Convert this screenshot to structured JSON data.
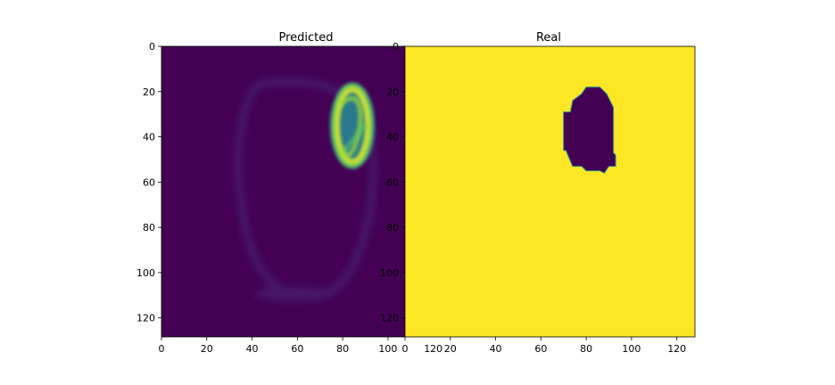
{
  "chart_data": [
    {
      "type": "heatmap",
      "title": "Predicted",
      "xlim": [
        0,
        128
      ],
      "ylim": [
        128,
        0
      ],
      "xticks": [
        "0",
        "20",
        "40",
        "60",
        "80",
        "100",
        "120"
      ],
      "yticks": [
        "0",
        "20",
        "40",
        "60",
        "80",
        "100",
        "120"
      ],
      "colormap": "viridis",
      "background_color": "#440154",
      "regions": [
        {
          "kind": "high-probability ring",
          "center": [
            85,
            35
          ],
          "radius": [
            9,
            19
          ],
          "colors": [
            "#21908d",
            "#5ec962",
            "#fde725"
          ]
        },
        {
          "kind": "faint outline",
          "center": [
            62,
            62
          ],
          "radius": [
            28,
            46
          ],
          "color": "#46246e"
        }
      ]
    },
    {
      "type": "heatmap",
      "title": "Real",
      "xlim": [
        0,
        128
      ],
      "ylim": [
        128,
        0
      ],
      "xticks": [
        "0",
        "20",
        "40",
        "60",
        "80",
        "100",
        "120"
      ],
      "yticks": [
        "0",
        "20",
        "40",
        "60",
        "80",
        "100",
        "120"
      ],
      "colormap": "viridis",
      "background_color": "#fde725",
      "mask_color": "#440154",
      "mask_outline": [
        [
          80,
          18
        ],
        [
          86,
          18
        ],
        [
          89,
          21
        ],
        [
          92,
          27
        ],
        [
          92,
          47
        ],
        [
          93,
          48
        ],
        [
          93,
          53
        ],
        [
          90,
          53
        ],
        [
          88,
          56
        ],
        [
          86,
          55
        ],
        [
          80,
          55
        ],
        [
          78,
          53
        ],
        [
          74,
          53
        ],
        [
          71,
          46
        ],
        [
          70,
          46
        ],
        [
          70,
          29
        ],
        [
          73,
          29
        ],
        [
          74,
          24
        ],
        [
          78,
          21
        ]
      ]
    }
  ]
}
